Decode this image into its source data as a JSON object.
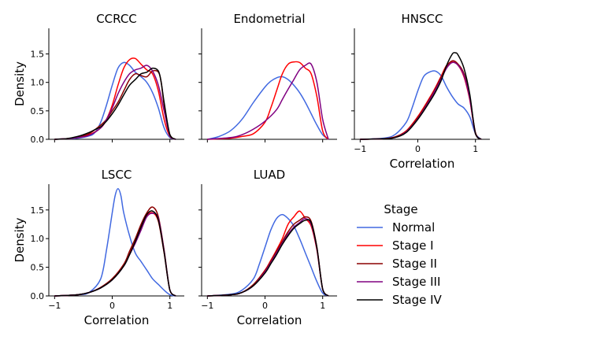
{
  "chart_data": {
    "type": "line",
    "legend": {
      "title": "Stage",
      "placement": "lower-right",
      "entries": [
        {
          "name": "Normal",
          "color": "#4169e1"
        },
        {
          "name": "Stage I",
          "color": "#ff0000"
        },
        {
          "name": "Stage II",
          "color": "#8b0000"
        },
        {
          "name": "Stage III",
          "color": "#800080"
        },
        {
          "name": "Stage IV",
          "color": "#000000"
        }
      ]
    },
    "xlim": [
      -1.1,
      1.25
    ],
    "ylim": [
      0,
      1.95
    ],
    "yticks": [
      0.0,
      0.5,
      1.0,
      1.5
    ],
    "xticks": [
      -1,
      0,
      1
    ],
    "panels": [
      {
        "title": "CCRCC",
        "xlabel": "",
        "ylabel": "Density",
        "series": [
          {
            "name": "Normal",
            "color": "#4169e1",
            "x": [
              -1.0,
              -0.8,
              -0.6,
              -0.4,
              -0.3,
              -0.2,
              -0.1,
              0.0,
              0.1,
              0.2,
              0.3,
              0.4,
              0.5,
              0.6,
              0.7,
              0.8,
              0.9,
              1.0,
              1.1
            ],
            "y": [
              0,
              0.01,
              0.02,
              0.06,
              0.12,
              0.3,
              0.6,
              0.95,
              1.25,
              1.35,
              1.3,
              1.18,
              1.1,
              1.0,
              0.82,
              0.55,
              0.2,
              0.03,
              0
            ]
          },
          {
            "name": "Stage I",
            "color": "#ff0000",
            "x": [
              -1.0,
              -0.8,
              -0.6,
              -0.4,
              -0.2,
              -0.1,
              0.0,
              0.1,
              0.2,
              0.3,
              0.4,
              0.5,
              0.6,
              0.7,
              0.8,
              0.9,
              1.0,
              1.1
            ],
            "y": [
              0,
              0.01,
              0.03,
              0.08,
              0.2,
              0.35,
              0.6,
              0.95,
              1.25,
              1.4,
              1.42,
              1.32,
              1.22,
              1.15,
              0.85,
              0.35,
              0.05,
              0
            ]
          },
          {
            "name": "Stage II",
            "color": "#8b0000",
            "x": [
              -1.0,
              -0.8,
              -0.6,
              -0.4,
              -0.2,
              -0.1,
              0.0,
              0.1,
              0.2,
              0.3,
              0.4,
              0.5,
              0.6,
              0.7,
              0.8,
              0.85,
              0.9,
              1.0,
              1.1
            ],
            "y": [
              0,
              0.01,
              0.04,
              0.1,
              0.25,
              0.35,
              0.5,
              0.65,
              0.85,
              1.05,
              1.15,
              1.12,
              1.1,
              1.2,
              1.18,
              1.0,
              0.6,
              0.08,
              0
            ]
          },
          {
            "name": "Stage III",
            "color": "#800080",
            "x": [
              -1.0,
              -0.8,
              -0.6,
              -0.4,
              -0.2,
              -0.1,
              0.0,
              0.1,
              0.2,
              0.3,
              0.4,
              0.5,
              0.6,
              0.7,
              0.8,
              0.9,
              1.0,
              1.1
            ],
            "y": [
              0,
              0.01,
              0.03,
              0.07,
              0.2,
              0.35,
              0.55,
              0.8,
              1.0,
              1.15,
              1.22,
              1.25,
              1.3,
              1.2,
              0.95,
              0.5,
              0.06,
              0
            ]
          },
          {
            "name": "Stage IV",
            "color": "#000000",
            "x": [
              -1.0,
              -0.8,
              -0.6,
              -0.4,
              -0.3,
              -0.2,
              -0.1,
              0.0,
              0.1,
              0.2,
              0.3,
              0.4,
              0.5,
              0.6,
              0.7,
              0.8,
              0.85,
              0.9,
              1.0,
              1.1
            ],
            "y": [
              0,
              0.01,
              0.05,
              0.12,
              0.17,
              0.22,
              0.32,
              0.45,
              0.6,
              0.78,
              0.95,
              1.05,
              1.15,
              1.18,
              1.25,
              1.2,
              1.0,
              0.65,
              0.08,
              0
            ]
          }
        ]
      },
      {
        "title": "Endometrial",
        "xlabel": "",
        "ylabel": "",
        "series": [
          {
            "name": "Normal",
            "color": "#4169e1",
            "x": [
              -1.0,
              -0.8,
              -0.6,
              -0.4,
              -0.2,
              0.0,
              0.1,
              0.2,
              0.3,
              0.4,
              0.5,
              0.6,
              0.7,
              0.8,
              0.9,
              1.0,
              1.1
            ],
            "y": [
              0,
              0.05,
              0.15,
              0.35,
              0.65,
              0.92,
              1.02,
              1.08,
              1.1,
              1.05,
              0.95,
              0.82,
              0.65,
              0.45,
              0.25,
              0.08,
              0
            ]
          },
          {
            "name": "Stage I",
            "color": "#ff0000",
            "x": [
              -1.0,
              -0.6,
              -0.4,
              -0.2,
              0.0,
              0.1,
              0.2,
              0.3,
              0.4,
              0.5,
              0.6,
              0.7,
              0.8,
              0.9,
              1.0,
              1.1
            ],
            "y": [
              0,
              0.02,
              0.05,
              0.1,
              0.3,
              0.55,
              0.85,
              1.15,
              1.32,
              1.36,
              1.35,
              1.25,
              1.15,
              0.75,
              0.15,
              0
            ]
          },
          {
            "name": "Stage III",
            "color": "#800080",
            "x": [
              -1.0,
              -0.6,
              -0.4,
              -0.2,
              0.0,
              0.2,
              0.3,
              0.4,
              0.5,
              0.6,
              0.7,
              0.8,
              0.9,
              1.0,
              1.1
            ],
            "y": [
              0,
              0.03,
              0.08,
              0.18,
              0.32,
              0.52,
              0.7,
              0.88,
              1.05,
              1.22,
              1.3,
              1.32,
              1.0,
              0.35,
              0
            ]
          }
        ]
      },
      {
        "title": "HNSCC",
        "xlabel": "Correlation",
        "ylabel": "",
        "series": [
          {
            "name": "Normal",
            "color": "#4169e1",
            "x": [
              -1.0,
              -0.6,
              -0.4,
              -0.2,
              -0.1,
              0.0,
              0.1,
              0.2,
              0.3,
              0.4,
              0.5,
              0.6,
              0.7,
              0.8,
              0.9,
              1.0,
              1.1
            ],
            "y": [
              0,
              0.02,
              0.08,
              0.3,
              0.55,
              0.85,
              1.1,
              1.18,
              1.2,
              1.12,
              0.92,
              0.75,
              0.62,
              0.55,
              0.4,
              0.1,
              0
            ]
          },
          {
            "name": "Stage I",
            "color": "#ff0000",
            "x": [
              -1.0,
              -0.6,
              -0.4,
              -0.2,
              0.0,
              0.2,
              0.3,
              0.4,
              0.5,
              0.6,
              0.7,
              0.8,
              0.9,
              1.0,
              1.1
            ],
            "y": [
              0,
              0.01,
              0.04,
              0.15,
              0.4,
              0.72,
              0.9,
              1.1,
              1.3,
              1.36,
              1.3,
              1.1,
              0.7,
              0.1,
              0
            ]
          },
          {
            "name": "Stage II",
            "color": "#8b0000",
            "x": [
              -1.0,
              -0.6,
              -0.4,
              -0.2,
              0.0,
              0.2,
              0.3,
              0.4,
              0.5,
              0.6,
              0.7,
              0.8,
              0.9,
              1.0,
              1.1
            ],
            "y": [
              0,
              0.01,
              0.04,
              0.14,
              0.38,
              0.7,
              0.88,
              1.08,
              1.28,
              1.38,
              1.32,
              1.15,
              0.75,
              0.12,
              0
            ]
          },
          {
            "name": "Stage III",
            "color": "#800080",
            "x": [
              -1.0,
              -0.6,
              -0.4,
              -0.2,
              0.0,
              0.2,
              0.3,
              0.4,
              0.5,
              0.6,
              0.7,
              0.8,
              0.9,
              1.0,
              1.1
            ],
            "y": [
              0,
              0.01,
              0.03,
              0.13,
              0.36,
              0.68,
              0.86,
              1.05,
              1.25,
              1.35,
              1.3,
              1.12,
              0.72,
              0.1,
              0
            ]
          },
          {
            "name": "Stage IV",
            "color": "#000000",
            "x": [
              -1.0,
              -0.6,
              -0.4,
              -0.2,
              0.0,
              0.2,
              0.3,
              0.4,
              0.5,
              0.6,
              0.65,
              0.7,
              0.8,
              0.9,
              1.0,
              1.1
            ],
            "y": [
              0,
              0.01,
              0.03,
              0.12,
              0.35,
              0.65,
              0.82,
              1.02,
              1.3,
              1.5,
              1.52,
              1.48,
              1.25,
              0.8,
              0.1,
              0
            ]
          }
        ]
      },
      {
        "title": "LSCC",
        "xlabel": "Correlation",
        "ylabel": "Density",
        "series": [
          {
            "name": "Normal",
            "color": "#4169e1",
            "x": [
              -1.0,
              -0.6,
              -0.4,
              -0.2,
              -0.1,
              0.0,
              0.05,
              0.1,
              0.15,
              0.2,
              0.3,
              0.4,
              0.5,
              0.6,
              0.7,
              0.8,
              0.9,
              1.0,
              1.1
            ],
            "y": [
              0,
              0.02,
              0.06,
              0.3,
              0.8,
              1.45,
              1.75,
              1.87,
              1.75,
              1.45,
              1.05,
              0.75,
              0.6,
              0.45,
              0.3,
              0.2,
              0.1,
              0.02,
              0
            ]
          },
          {
            "name": "Stage I",
            "color": "#ff0000",
            "x": [
              -1.0,
              -0.6,
              -0.4,
              -0.2,
              0.0,
              0.2,
              0.3,
              0.4,
              0.5,
              0.6,
              0.7,
              0.8,
              0.9,
              1.0,
              1.1
            ],
            "y": [
              0,
              0.02,
              0.06,
              0.15,
              0.3,
              0.55,
              0.75,
              0.95,
              1.2,
              1.4,
              1.45,
              1.3,
              0.75,
              0.1,
              0
            ]
          },
          {
            "name": "Stage II",
            "color": "#8b0000",
            "x": [
              -1.0,
              -0.6,
              -0.4,
              -0.2,
              0.0,
              0.2,
              0.3,
              0.4,
              0.5,
              0.6,
              0.7,
              0.8,
              0.9,
              1.0,
              1.1
            ],
            "y": [
              0,
              0.02,
              0.06,
              0.15,
              0.3,
              0.55,
              0.78,
              1.0,
              1.25,
              1.45,
              1.55,
              1.38,
              0.8,
              0.1,
              0
            ]
          },
          {
            "name": "Stage III",
            "color": "#800080",
            "x": [
              -1.0,
              -0.6,
              -0.4,
              -0.2,
              0.0,
              0.2,
              0.3,
              0.4,
              0.5,
              0.6,
              0.7,
              0.8,
              0.9,
              1.0,
              1.1
            ],
            "y": [
              0,
              0.02,
              0.06,
              0.14,
              0.28,
              0.52,
              0.72,
              0.92,
              1.15,
              1.38,
              1.44,
              1.35,
              0.78,
              0.1,
              0
            ]
          },
          {
            "name": "Stage IV",
            "color": "#000000",
            "x": [
              -1.0,
              -0.6,
              -0.4,
              -0.2,
              0.0,
              0.2,
              0.3,
              0.4,
              0.5,
              0.6,
              0.7,
              0.8,
              0.9,
              1.0,
              1.1
            ],
            "y": [
              0,
              0.02,
              0.06,
              0.14,
              0.28,
              0.52,
              0.72,
              0.95,
              1.2,
              1.42,
              1.48,
              1.32,
              0.76,
              0.1,
              0
            ]
          }
        ]
      },
      {
        "title": "LUAD",
        "xlabel": "Correlation",
        "ylabel": "",
        "series": [
          {
            "name": "Normal",
            "color": "#4169e1",
            "x": [
              -1.0,
              -0.6,
              -0.4,
              -0.2,
              -0.1,
              0.0,
              0.1,
              0.2,
              0.3,
              0.4,
              0.5,
              0.6,
              0.7,
              0.8,
              0.9,
              1.0,
              1.1
            ],
            "y": [
              0,
              0.03,
              0.1,
              0.3,
              0.55,
              0.85,
              1.15,
              1.35,
              1.42,
              1.35,
              1.22,
              1.0,
              0.75,
              0.5,
              0.25,
              0.05,
              0
            ]
          },
          {
            "name": "Stage I",
            "color": "#ff0000",
            "x": [
              -1.0,
              -0.6,
              -0.4,
              -0.2,
              0.0,
              0.1,
              0.2,
              0.3,
              0.4,
              0.5,
              0.6,
              0.7,
              0.8,
              0.9,
              1.0,
              1.1
            ],
            "y": [
              0,
              0.02,
              0.06,
              0.2,
              0.45,
              0.62,
              0.8,
              1.0,
              1.25,
              1.38,
              1.48,
              1.35,
              1.22,
              0.8,
              0.12,
              0
            ]
          },
          {
            "name": "Stage II",
            "color": "#8b0000",
            "x": [
              -1.0,
              -0.6,
              -0.4,
              -0.2,
              0.0,
              0.1,
              0.2,
              0.3,
              0.4,
              0.5,
              0.6,
              0.7,
              0.8,
              0.9,
              1.0,
              1.1
            ],
            "y": [
              0,
              0.02,
              0.06,
              0.2,
              0.44,
              0.6,
              0.78,
              0.95,
              1.12,
              1.25,
              1.32,
              1.38,
              1.3,
              0.85,
              0.12,
              0
            ]
          },
          {
            "name": "Stage III",
            "color": "#800080",
            "x": [
              -1.0,
              -0.6,
              -0.4,
              -0.2,
              0.0,
              0.1,
              0.2,
              0.3,
              0.4,
              0.5,
              0.6,
              0.7,
              0.8,
              0.9,
              1.0,
              1.1
            ],
            "y": [
              0,
              0.02,
              0.06,
              0.18,
              0.42,
              0.58,
              0.75,
              0.92,
              1.08,
              1.2,
              1.28,
              1.35,
              1.25,
              0.82,
              0.12,
              0
            ]
          },
          {
            "name": "Stage IV",
            "color": "#000000",
            "x": [
              -1.0,
              -0.6,
              -0.4,
              -0.2,
              0.0,
              0.1,
              0.2,
              0.3,
              0.4,
              0.5,
              0.6,
              0.7,
              0.8,
              0.9,
              1.0,
              1.1
            ],
            "y": [
              0,
              0.02,
              0.06,
              0.18,
              0.4,
              0.56,
              0.72,
              0.9,
              1.05,
              1.18,
              1.26,
              1.32,
              1.28,
              0.84,
              0.12,
              0
            ]
          }
        ]
      }
    ]
  }
}
